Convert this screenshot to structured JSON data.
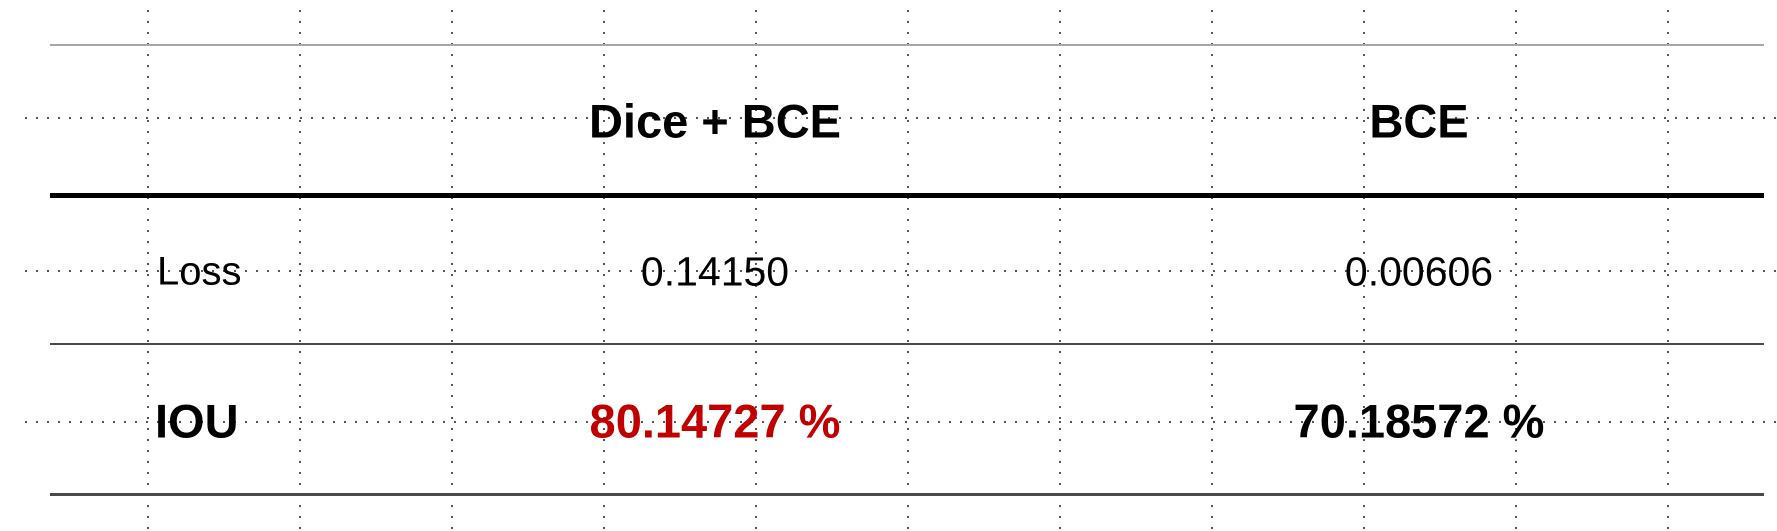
{
  "table": {
    "columns": [
      "",
      "Dice + BCE",
      "BCE"
    ],
    "rows": [
      {
        "label": "Loss",
        "values": [
          "0.14150",
          "0.00606"
        ]
      },
      {
        "label": "IOU",
        "values": [
          "80.14727 %",
          "70.18572 %"
        ]
      }
    ]
  },
  "colors": {
    "highlight": "#c00000",
    "text": "#000000"
  }
}
